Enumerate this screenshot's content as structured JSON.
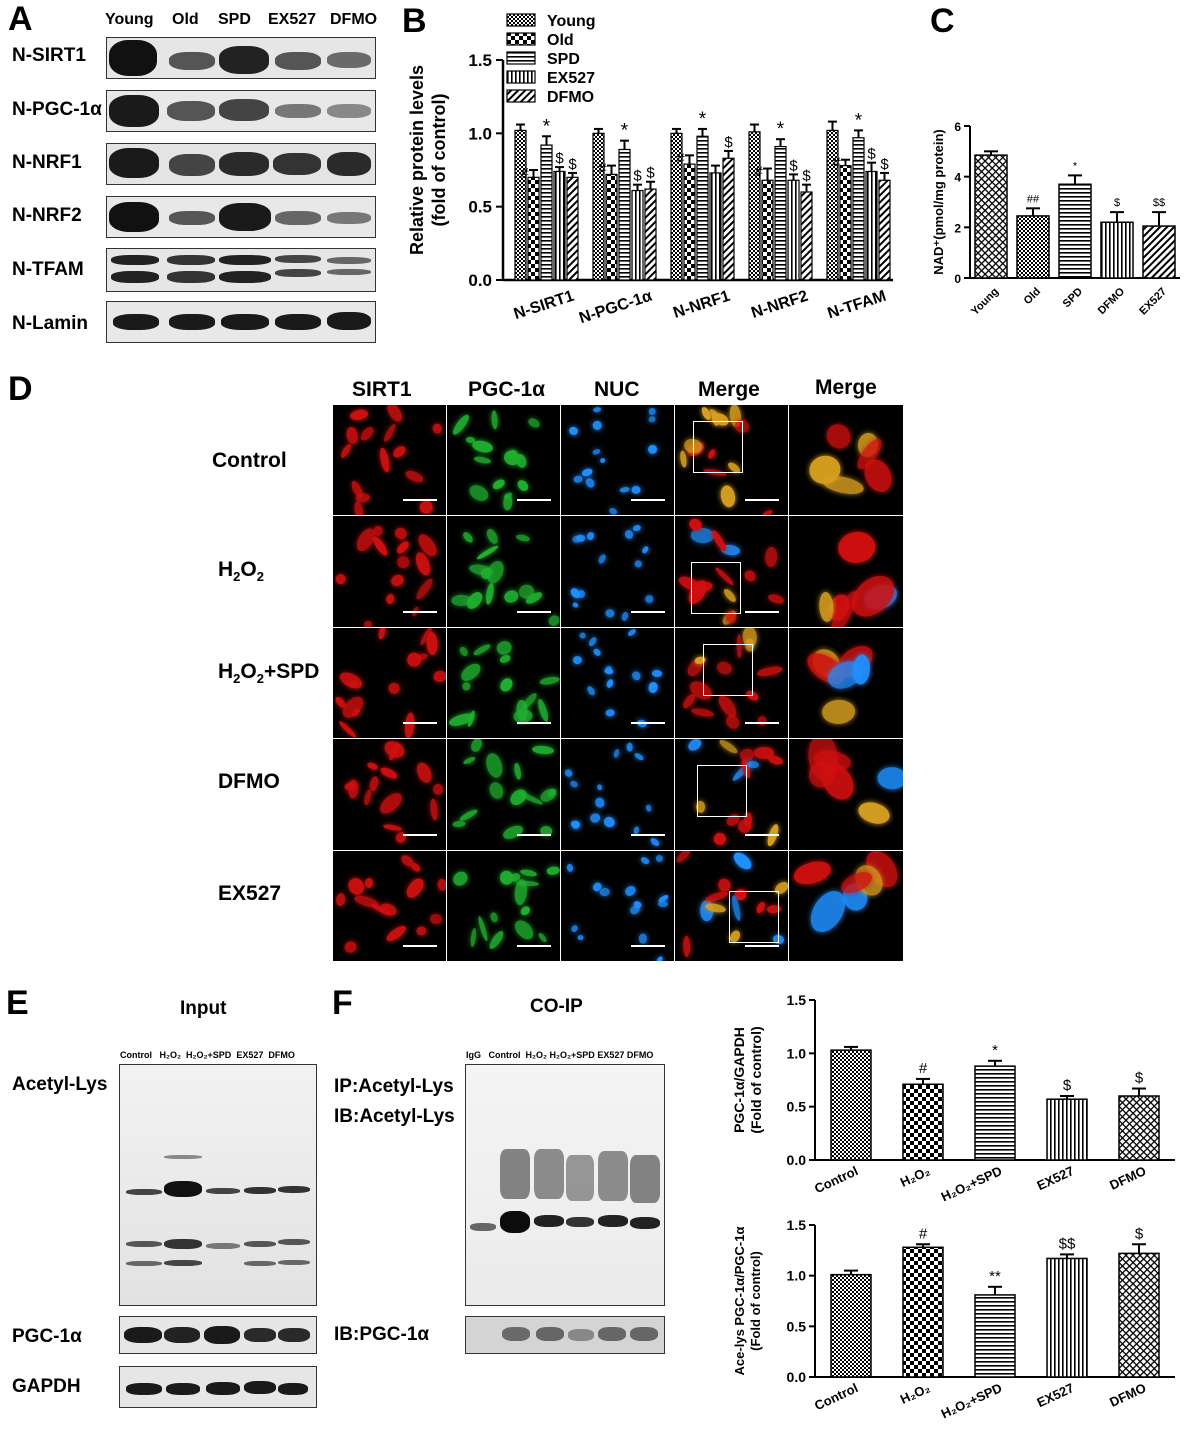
{
  "panels": {
    "A": "A",
    "B": "B",
    "C": "C",
    "D": "D",
    "E": "E",
    "F": "F"
  },
  "panelA": {
    "columns": [
      "Young",
      "Old",
      "SPD",
      "EX527",
      "DFMO"
    ],
    "rows": [
      "N-SIRT1",
      "N-PGC-1α",
      "N-NRF1",
      "N-NRF2",
      "N-TFAM",
      "N-Lamin"
    ]
  },
  "panelD": {
    "columns": [
      "SIRT1",
      "PGC-1α",
      "NUC",
      "Merge",
      "Merge"
    ],
    "rows": [
      "Control",
      "H2O2",
      "H2O2+SPD",
      "DFMO",
      "EX527"
    ],
    "colors": {
      "sirt1": "#d01010",
      "pgc": "#20b030",
      "nuc": "#2090ff"
    }
  },
  "panelE": {
    "title": "Input",
    "lanes": [
      "Control",
      "H₂O₂",
      "H₂O₂+SPD",
      "EX527",
      "DFMO"
    ],
    "rows": [
      "Acetyl-Lys",
      "PGC-1α",
      "GAPDH"
    ]
  },
  "panelF": {
    "title": "CO-IP",
    "lanes": [
      "IgG",
      "Control",
      "H₂O₂",
      "H₂O₂+SPD",
      "EX527",
      "DFMO"
    ],
    "ip_label": "IP:Acetyl-Lys",
    "ib_label": "IB:Acetyl-Lys",
    "ib2_label": "IB:PGC-1α"
  },
  "chart_data": [
    {
      "id": "B",
      "type": "bar",
      "categories": [
        "N-SIRT1",
        "N-PGC-1α",
        "N-NRF1",
        "N-NRF2",
        "N-TFAM"
      ],
      "series": [
        {
          "name": "Young",
          "values": [
            1.02,
            1.0,
            1.0,
            1.01,
            1.02
          ],
          "errors": [
            0.04,
            0.03,
            0.03,
            0.05,
            0.06
          ]
        },
        {
          "name": "Old",
          "values": [
            0.7,
            0.72,
            0.79,
            0.68,
            0.78
          ],
          "errors": [
            0.05,
            0.06,
            0.06,
            0.08,
            0.04
          ]
        },
        {
          "name": "SPD",
          "values": [
            0.92,
            0.89,
            0.98,
            0.91,
            0.97
          ],
          "errors": [
            0.06,
            0.06,
            0.05,
            0.05,
            0.05
          ]
        },
        {
          "name": "EX527",
          "values": [
            0.74,
            0.61,
            0.73,
            0.68,
            0.74
          ],
          "errors": [
            0.03,
            0.04,
            0.05,
            0.04,
            0.06
          ]
        },
        {
          "name": "DFMO",
          "values": [
            0.7,
            0.62,
            0.83,
            0.6,
            0.68
          ],
          "errors": [
            0.03,
            0.05,
            0.05,
            0.05,
            0.05
          ]
        }
      ],
      "annotations": {
        "Old": [
          "#",
          "#",
          "#",
          "#",
          "#"
        ],
        "SPD": [
          "*",
          "*",
          "*",
          "*",
          "*"
        ],
        "EX527": [
          "$",
          "$",
          "",
          "$",
          "$"
        ],
        "DFMO": [
          "$",
          "$",
          "$",
          "$",
          "$"
        ]
      },
      "ylabel": "Relative protein levels (fold of control)",
      "ylim": [
        0,
        1.5
      ],
      "yticks": [
        "0.0",
        "0.5",
        "1.0",
        "1.5"
      ],
      "legend": "top-left"
    },
    {
      "id": "C",
      "type": "bar",
      "categories": [
        "Young",
        "Old",
        "SPD",
        "DFMO",
        "EX527"
      ],
      "values": [
        4.85,
        2.45,
        3.7,
        2.2,
        2.05
      ],
      "errors": [
        0.15,
        0.3,
        0.35,
        0.4,
        0.55
      ],
      "annotations": [
        "",
        "##",
        "*",
        "$",
        "$$"
      ],
      "ylabel": "NAD⁺(pmol/mg protein)",
      "ylim": [
        0,
        6
      ],
      "yticks": [
        "0",
        "2",
        "4",
        "6"
      ]
    },
    {
      "id": "F1",
      "type": "bar",
      "categories": [
        "Control",
        "H₂O₂",
        "H₂O₂+SPD",
        "EX527",
        "DFMO"
      ],
      "values": [
        1.03,
        0.71,
        0.88,
        0.57,
        0.6
      ],
      "errors": [
        0.03,
        0.05,
        0.05,
        0.03,
        0.07
      ],
      "annotations": [
        "",
        "#",
        "*",
        "$",
        "$"
      ],
      "ylabel": "PGC-1α/GAPDH (Fold of control)",
      "ylim": [
        0,
        1.5
      ],
      "yticks": [
        "0.0",
        "0.5",
        "1.0",
        "1.5"
      ]
    },
    {
      "id": "F2",
      "type": "bar",
      "categories": [
        "Control",
        "H₂O₂",
        "H₂O₂+SPD",
        "EX527",
        "DFMO"
      ],
      "values": [
        1.01,
        1.28,
        0.81,
        1.17,
        1.22
      ],
      "errors": [
        0.04,
        0.03,
        0.08,
        0.04,
        0.09
      ],
      "annotations": [
        "",
        "#",
        "**",
        "$$",
        "$"
      ],
      "ylabel": "Ace-lys PGC-1α/PGC-1α (Fold of control)",
      "ylim": [
        0,
        1.5
      ],
      "yticks": [
        "0.0",
        "0.5",
        "1.0",
        "1.5"
      ]
    }
  ]
}
